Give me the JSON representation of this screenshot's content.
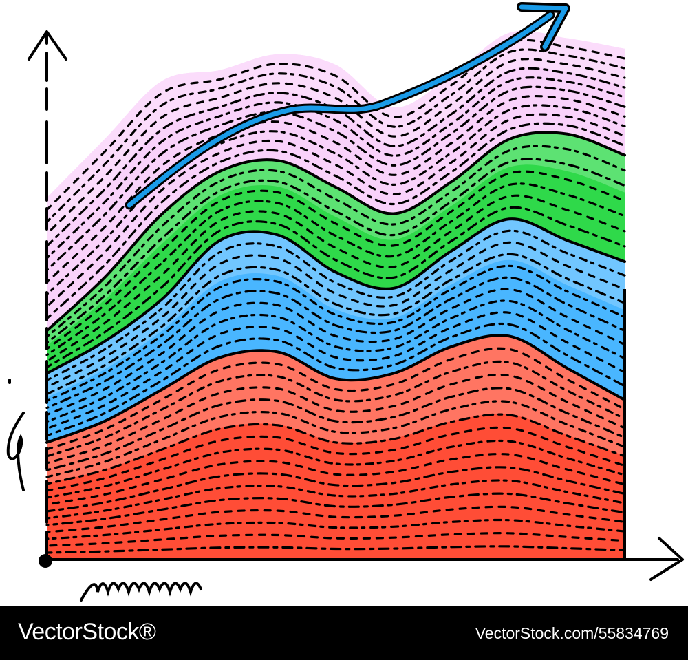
{
  "chart_data": {
    "type": "area",
    "stacked": true,
    "title": "",
    "xlabel": "",
    "ylabel": "",
    "legend": "none",
    "grid": false,
    "x": [
      0,
      1,
      2,
      3,
      4,
      5,
      6,
      7,
      8,
      9,
      10
    ],
    "ylim": [
      0,
      10
    ],
    "series": [
      {
        "values": [
          2.2,
          2.6,
          3.2,
          3.8,
          3.9,
          3.4,
          3.5,
          4.0,
          4.2,
          3.6,
          3.0
        ],
        "color": "#ff4d36"
      },
      {
        "values": [
          1.3,
          1.5,
          1.7,
          2.2,
          2.2,
          2.0,
          1.6,
          1.8,
          2.2,
          2.4,
          2.6
        ],
        "color": "#49b6ff"
      },
      {
        "values": [
          0.8,
          1.2,
          1.6,
          1.3,
          1.4,
          1.6,
          1.4,
          1.3,
          1.5,
          2.0,
          2.0
        ],
        "color": "#2fd94a"
      },
      {
        "values": [
          2.5,
          2.6,
          2.5,
          1.9,
          2.0,
          2.3,
          2.0,
          2.0,
          2.0,
          1.8,
          2.0
        ],
        "color": "#f9d2fa"
      }
    ],
    "trend_arrow_color": "#1a9be8",
    "axis_color": "#000000"
  },
  "watermark": {
    "brand": "VectorStock®",
    "image_id": "VectorStock.com/55834769"
  }
}
